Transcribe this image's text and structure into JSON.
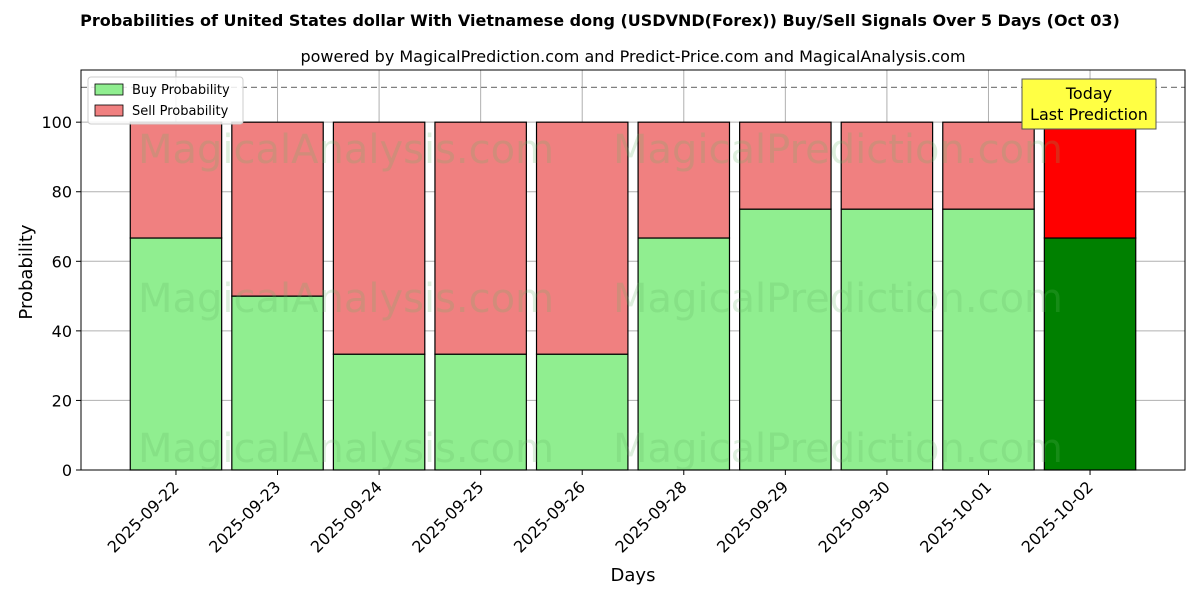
{
  "chart_data": {
    "type": "bar",
    "stacked": true,
    "title": "Probabilities of United States dollar With Vietnamese dong (USDVND(Forex)) Buy/Sell Signals Over 5 Days (Oct 03)",
    "subtitle": "powered by MagicalPrediction.com and Predict-Price.com and MagicalAnalysis.com",
    "xlabel": "Days",
    "ylabel": "Probability",
    "ylim": [
      0,
      115
    ],
    "yticks": [
      0,
      20,
      40,
      60,
      80,
      100
    ],
    "threshold_line": 110,
    "grid": true,
    "legend_position": "top-left",
    "categories": [
      "2025-09-22",
      "2025-09-23",
      "2025-09-24",
      "2025-09-25",
      "2025-09-26",
      "2025-09-28",
      "2025-09-29",
      "2025-09-30",
      "2025-10-01",
      "2025-10-02"
    ],
    "series": [
      {
        "name": "Buy Probability",
        "color": "#90ee90",
        "highlight_color": "#008000",
        "values": [
          66.7,
          50,
          33.3,
          33.3,
          33.3,
          66.7,
          75,
          75,
          75,
          66.7
        ]
      },
      {
        "name": "Sell Probability",
        "color": "#f08080",
        "highlight_color": "#ff0000",
        "values": [
          33.3,
          50,
          66.7,
          66.7,
          66.7,
          33.3,
          25,
          25,
          25,
          33.3
        ]
      }
    ],
    "highlight_index": 9,
    "annotation": {
      "line1": "Today",
      "line2": "Last Prediction",
      "background": "#ffff44"
    },
    "watermarks": [
      "MagicalAnalysis.com",
      "MagicalPrediction.com"
    ]
  }
}
